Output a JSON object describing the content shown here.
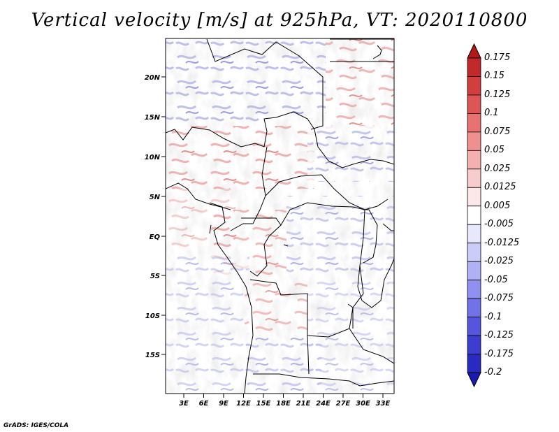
{
  "title": "Vertical velocity [m/s] at 925hPa, VT: 2020110800",
  "credit": "GrADS: IGES/COLA",
  "map": {
    "lat_labels": [
      "20N",
      "15N",
      "10N",
      "5N",
      "EQ",
      "5S",
      "10S",
      "15S"
    ],
    "lon_labels": [
      "3E",
      "6E",
      "9E",
      "12E",
      "15E",
      "18E",
      "21E",
      "24E",
      "27E",
      "30E",
      "33E"
    ]
  },
  "colorbar": {
    "labels": [
      "0.175",
      "0.15",
      "0.125",
      "0.1",
      "0.075",
      "0.05",
      "0.025",
      "0.0125",
      "0.005",
      "-0.005",
      "-0.0125",
      "-0.025",
      "-0.05",
      "-0.075",
      "-0.1",
      "-0.125",
      "-0.175",
      "-0.2"
    ],
    "colors": [
      "#b01a1a",
      "#c22a2a",
      "#d23d3d",
      "#de5555",
      "#e87272",
      "#ef9090",
      "#f4b0b0",
      "#f8cccc",
      "#fce8e8",
      "#ffffff",
      "#e8e8fc",
      "#ccccf8",
      "#b0b0f4",
      "#9090ef",
      "#7272e8",
      "#5555de",
      "#3d3dd2",
      "#2a2ac2",
      "#1a1ab0"
    ]
  }
}
